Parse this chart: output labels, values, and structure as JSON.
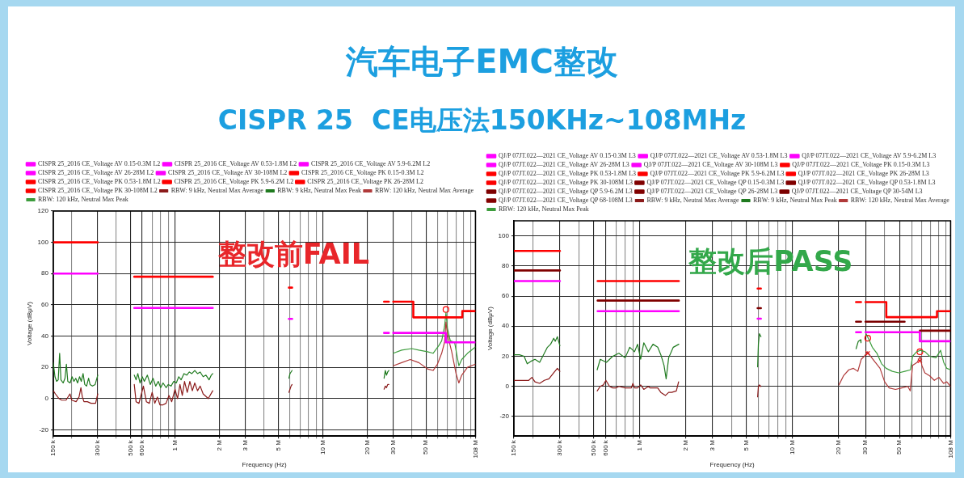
{
  "chart_data": [
    {
      "type": "line",
      "title": "汽车电子EMC整改",
      "subtitle": "CISPR 25  CE电压法150KHz~108MHz",
      "xlabel": "Frequency (Hz)",
      "ylabel": "Voltage (dBμV)",
      "annotations": [
        "整改前FAIL"
      ],
      "log": "x",
      "xlim": [
        150000,
        108000000
      ],
      "xticks": [
        {
          "value": 150000,
          "label": "150 k"
        },
        {
          "value": 200000,
          "label": null
        },
        {
          "value": 300000,
          "label": "300 k"
        },
        {
          "value": 400000,
          "label": null
        },
        {
          "value": 500000,
          "label": "500 k"
        },
        {
          "value": 600000,
          "label": "600 k"
        },
        {
          "value": 700000,
          "label": null
        },
        {
          "value": 800000,
          "label": null
        },
        {
          "value": 900000,
          "label": null
        },
        {
          "value": 1000000,
          "label": "1 M"
        },
        {
          "value": 2000000,
          "label": "2 M"
        },
        {
          "value": 3000000,
          "label": "3 M"
        },
        {
          "value": 4000000,
          "label": null
        },
        {
          "value": 5000000,
          "label": "5 M"
        },
        {
          "value": 6000000,
          "label": null
        },
        {
          "value": 7000000,
          "label": null
        },
        {
          "value": 8000000,
          "label": null
        },
        {
          "value": 9000000,
          "label": null
        },
        {
          "value": 10000000,
          "label": "10 M"
        },
        {
          "value": 20000000,
          "label": "20 M"
        },
        {
          "value": 30000000,
          "label": "30 M"
        },
        {
          "value": 40000000,
          "label": null
        },
        {
          "value": 50000000,
          "label": "50 M"
        },
        {
          "value": 60000000,
          "label": null
        },
        {
          "value": 70000000,
          "label": null
        },
        {
          "value": 80000000,
          "label": null
        },
        {
          "value": 90000000,
          "label": null
        },
        {
          "value": 100000000,
          "label": null
        },
        {
          "value": 108000000,
          "label": "108 M"
        }
      ],
      "ylim": [
        -24,
        120
      ],
      "yticks": [
        -20,
        0,
        20,
        40,
        60,
        80,
        100,
        120
      ],
      "grid": true,
      "legend": "top left",
      "series": [
        {
          "name": "CISPR 25_2016 CE_Voltage AV 0.15-0.3M L2",
          "color": "#ff00ff",
          "x": [
            150000,
            300000
          ],
          "values": [
            80,
            80
          ]
        },
        {
          "name": "CISPR 25_2016 CE_Voltage AV 0.53-1.8M L2",
          "color": "#ff00ff",
          "x": [
            530000,
            1800000
          ],
          "values": [
            58,
            58
          ]
        },
        {
          "name": "CISPR 25_2016 CE_Voltage AV 5.9-6.2M L2",
          "color": "#fd00fd",
          "x": [
            5900000,
            6200000
          ],
          "values": [
            51,
            51
          ]
        },
        {
          "name": "CISPR 25_2016 CE_Voltage AV 26-28M L2",
          "color": "#ff00ff",
          "x": [
            26000000,
            28000000
          ],
          "values": [
            42,
            42
          ]
        },
        {
          "name": "CISPR 25_2016 CE_Voltage AV 30-108M L2",
          "color": "#fb00fb",
          "x": [
            30000000,
            68000000,
            68000000,
            108000000
          ],
          "values": [
            42,
            42,
            36,
            36
          ]
        },
        {
          "name": "CISPR 25_2016 CE_Voltage PK 0.15-0.3M L2",
          "color": "#ff0000",
          "x": [
            150000,
            300000
          ],
          "values": [
            100,
            100
          ]
        },
        {
          "name": "CISPR 25_2016 CE_Voltage PK 0.53-1.8M L2",
          "color": "#ff0000",
          "x": [
            530000,
            1800000
          ],
          "values": [
            78,
            78
          ]
        },
        {
          "name": "CISPR 25_2016 CE_Voltage PK 5.9-6.2M L2",
          "color": "#fd0000",
          "x": [
            5900000,
            6200000
          ],
          "values": [
            71,
            71
          ]
        },
        {
          "name": "CISPR 25_2016 CE_Voltage PK 26-28M L2",
          "color": "#ff0000",
          "x": [
            26000000,
            28000000
          ],
          "values": [
            62,
            62
          ]
        },
        {
          "name": "CISPR 25_2016 CE_Voltage PK 30-108M L2",
          "color": "#fb0000",
          "x": [
            30000000,
            41000000,
            41000000,
            88000000,
            88000000,
            108000000
          ],
          "values": [
            62,
            62,
            52,
            52,
            56,
            56
          ]
        },
        {
          "name": "RBW: 9 kHz, Neutral Max Average",
          "color": "#8b1a1a",
          "x": [
            150000,
            155000,
            163900,
            171000,
            183000,
            194500,
            200000,
            214000,
            224000,
            230700,
            236000,
            242000,
            255000,
            270000,
            290000,
            300000,
            400000,
            530000,
            545000,
            570000,
            611000,
            640000,
            670000,
            700000,
            730000,
            760000,
            790000,
            830000,
            870000,
            910000,
            950000,
            1000000,
            1040000,
            1080000,
            1120000,
            1160000,
            1210000,
            1260000,
            1310000,
            1360000,
            1420000,
            1480000,
            1550000,
            1680000,
            1800000
          ],
          "values": [
            5,
            3,
            0,
            -1,
            -1,
            3,
            -1,
            -2,
            1,
            7,
            1,
            -2,
            -2,
            -3,
            -3,
            3,
            null,
            9,
            -2,
            -3,
            8,
            -2,
            -3,
            4,
            -3,
            1,
            -4,
            -4,
            -3,
            2,
            -2,
            6,
            0,
            9,
            2,
            11,
            4,
            11,
            5,
            10,
            5,
            8,
            3,
            0,
            5
          ]
        },
        {
          "name": "RBW: 9 kHz, Neutral Max Peak",
          "color": "#1f7a1f",
          "x": [
            150000,
            154000,
            158000,
            162000,
            165600,
            169000,
            175000,
            180000,
            184000,
            188000,
            195000,
            201000,
            207000,
            213000,
            219000,
            226000,
            232000,
            238600,
            245000,
            252000,
            260000,
            266000,
            276000,
            288000,
            300000,
            400000,
            530000,
            545000,
            560000,
            580000,
            600000,
            620000,
            650000,
            680000,
            710000,
            740000,
            770000,
            800000,
            830000,
            870000,
            900000,
            940000,
            980000,
            1020000,
            1060000,
            1100000,
            1150000,
            1200000,
            1250000,
            1300000,
            1360000,
            1420000,
            1480000,
            1550000,
            1620000,
            1700000,
            1760000,
            1800000
          ],
          "values": [
            23,
            14,
            11,
            12,
            29,
            12,
            10,
            13,
            22,
            11,
            10,
            14,
            11,
            13,
            10,
            14,
            11,
            16,
            9,
            8,
            13,
            9,
            8,
            9,
            15,
            null,
            15,
            12,
            16,
            10,
            14,
            11,
            15,
            9,
            13,
            8,
            11,
            7,
            10,
            7,
            9,
            8,
            11,
            10,
            14,
            12,
            16,
            15,
            17,
            16,
            18,
            16,
            17,
            14,
            15,
            12,
            15,
            16
          ]
        },
        {
          "name": "RBW: 120 kHz, Neutral Max Average",
          "color": "#b03a3a",
          "x": [
            30000000,
            34200000,
            39100000,
            44700000,
            51100000,
            55800000,
            59700000,
            63800000,
            66700000,
            68200000,
            69800000,
            74600000,
            79800000,
            83400000,
            87200000,
            95400000,
            108000000
          ],
          "values": [
            21,
            23,
            25,
            23,
            19,
            18,
            22,
            29,
            36,
            49,
            41,
            30,
            16,
            10,
            15,
            20,
            22
          ]
        },
        {
          "name": "RBW: 120 kHz, Neutral Max Peak",
          "color": "#3c9c3c",
          "x": [
            30000000,
            34200000,
            40000000,
            44700000,
            51100000,
            55800000,
            61100000,
            63800000,
            66700000,
            68200000,
            69800000,
            73000000,
            78000000,
            83400000,
            87200000,
            95400000,
            108000000
          ],
          "values": [
            29,
            31,
            32,
            31,
            30,
            29,
            34,
            37,
            46,
            55,
            45,
            37,
            36,
            21,
            25,
            29,
            33
          ]
        },
        {
          "color": "#8a1a1a",
          "x": [
            5900000,
            6000000,
            6100000,
            6200000
          ],
          "values": [
            4,
            6,
            8,
            9
          ]
        },
        {
          "color": "#891a1a",
          "x": [
            26000000,
            26500000,
            27000000,
            27500000,
            28000000
          ],
          "values": [
            6,
            8,
            7,
            9,
            9
          ]
        },
        {
          "color": "#1e7a1e",
          "x": [
            5900000,
            6000000,
            6100000,
            6200000
          ],
          "values": [
            13,
            16,
            17,
            18
          ]
        },
        {
          "color": "#1d7a1d",
          "x": [
            26000000,
            26500000,
            27000000,
            27500000,
            28000000
          ],
          "values": [
            13,
            18,
            15,
            17,
            18
          ]
        },
        {
          "type": "scatter",
          "marker": "circle",
          "color": "#ff0000",
          "x": [
            68200000
          ],
          "values": [
            57
          ]
        }
      ]
    },
    {
      "type": "line",
      "xlabel": "Frequency (Hz)",
      "ylabel": "Voltage (dBμV)",
      "annotations": [
        "整改后PASS"
      ],
      "log": "x",
      "xlim": [
        150000,
        108000000
      ],
      "xticks": [
        {
          "value": 150000,
          "label": "150 k"
        },
        {
          "value": 200000,
          "label": null
        },
        {
          "value": 300000,
          "label": "300 k"
        },
        {
          "value": 400000,
          "label": null
        },
        {
          "value": 500000,
          "label": "500 k"
        },
        {
          "value": 600000,
          "label": "600 k"
        },
        {
          "value": 700000,
          "label": null
        },
        {
          "value": 800000,
          "label": null
        },
        {
          "value": 900000,
          "label": null
        },
        {
          "value": 1000000,
          "label": "1 M"
        },
        {
          "value": 2000000,
          "label": "2 M"
        },
        {
          "value": 3000000,
          "label": "3 M"
        },
        {
          "value": 4000000,
          "label": null
        },
        {
          "value": 5000000,
          "label": "5 M"
        },
        {
          "value": 6000000,
          "label": null
        },
        {
          "value": 7000000,
          "label": null
        },
        {
          "value": 8000000,
          "label": null
        },
        {
          "value": 9000000,
          "label": null
        },
        {
          "value": 10000000,
          "label": "10 M"
        },
        {
          "value": 20000000,
          "label": "20 M"
        },
        {
          "value": 30000000,
          "label": "30 M"
        },
        {
          "value": 40000000,
          "label": null
        },
        {
          "value": 50000000,
          "label": "50 M"
        },
        {
          "value": 60000000,
          "label": null
        },
        {
          "value": 70000000,
          "label": null
        },
        {
          "value": 80000000,
          "label": null
        },
        {
          "value": 90000000,
          "label": null
        },
        {
          "value": 100000000,
          "label": null
        },
        {
          "value": 108000000,
          "label": "108 M"
        }
      ],
      "ylim": [
        -33,
        110
      ],
      "yticks": [
        -20,
        0,
        20,
        40,
        60,
        80,
        100
      ],
      "grid": true,
      "legend": "top left",
      "series": [
        {
          "name": "QJ/P 07JT.022—2021 CE_Voltage AV 0.15-0.3M L3",
          "color": "#ff00ff",
          "x": [
            150000,
            300000
          ],
          "values": [
            70,
            70
          ]
        },
        {
          "name": "QJ/P 07JT.022—2021 CE_Voltage AV 0.53-1.8M L3",
          "color": "#ff00ff",
          "x": [
            530000,
            1800000
          ],
          "values": [
            50,
            50
          ]
        },
        {
          "name": "QJ/P 07JT.022—2021 CE_Voltage AV 5.9-6.2M L3",
          "color": "#fd00fd",
          "x": [
            5900000,
            6200000
          ],
          "values": [
            45,
            45
          ]
        },
        {
          "name": "QJ/P 07JT.022—2021 CE_Voltage AV 26-28M L3",
          "color": "#ff00ff",
          "x": [
            26000000,
            28000000
          ],
          "values": [
            36,
            36
          ]
        },
        {
          "name": "QJ/P 07JT.022—2021 CE_Voltage AV 30-108M L3",
          "color": "#fb00fb",
          "x": [
            30000000,
            68000000,
            68000000,
            108000000
          ],
          "values": [
            36,
            36,
            30,
            30
          ]
        },
        {
          "name": "QJ/P 07JT.022—2021 CE_Voltage PK 0.15-0.3M L3",
          "color": "#ff0000",
          "x": [
            150000,
            300000
          ],
          "values": [
            90,
            90
          ]
        },
        {
          "name": "QJ/P 07JT.022—2021 CE_Voltage PK 0.53-1.8M L3",
          "color": "#ff0000",
          "x": [
            530000,
            1800000
          ],
          "values": [
            70,
            70
          ]
        },
        {
          "name": "QJ/P 07JT.022—2021 CE_Voltage PK 5.9-6.2M L3",
          "color": "#fd0000",
          "x": [
            5900000,
            6200000
          ],
          "values": [
            65,
            65
          ]
        },
        {
          "name": "QJ/P 07JT.022—2021 CE_Voltage PK 26-28M L3",
          "color": "#ff0000",
          "x": [
            26000000,
            28000000
          ],
          "values": [
            56,
            56
          ]
        },
        {
          "name": "QJ/P 07JT.022—2021 CE_Voltage PK 30-108M L3",
          "color": "#fb0000",
          "x": [
            30000000,
            41000000,
            41000000,
            88000000,
            88000000,
            108000000
          ],
          "values": [
            56,
            56,
            46,
            46,
            50,
            50
          ]
        },
        {
          "name": "QJ/P 07JT.022—2021 CE_Voltage QP 0.15-0.3M L3",
          "color": "#800000",
          "x": [
            150000,
            300000
          ],
          "values": [
            77,
            77
          ]
        },
        {
          "name": "QJ/P 07JT.022—2021 CE_Voltage QP 0.53-1.8M L3",
          "color": "#800000",
          "x": [
            530000,
            1800000
          ],
          "values": [
            57,
            57
          ]
        },
        {
          "name": "QJ/P 07JT.022—2021 CE_Voltage QP 5.9-6.2M L3",
          "color": "#7e0000",
          "x": [
            5900000,
            6200000
          ],
          "values": [
            52,
            52
          ]
        },
        {
          "name": "QJ/P 07JT.022—2021 CE_Voltage QP 26-28M L3",
          "color": "#800000",
          "x": [
            26000000,
            28000000
          ],
          "values": [
            43,
            43
          ]
        },
        {
          "name": "QJ/P 07JT.022—2021 CE_Voltage QP 30-54M L3",
          "color": "#7c0000",
          "x": [
            30000000,
            54000000
          ],
          "values": [
            43,
            43
          ]
        },
        {
          "name": "QJ/P 07JT.022—2021 CE_Voltage QP 68-108M L3",
          "color": "#840000",
          "x": [
            68000000,
            108000000
          ],
          "values": [
            37,
            37
          ]
        },
        {
          "name": "RBW: 9 kHz, Neutral Max Average",
          "color": "#8b1a1a",
          "x": [
            150000,
            163000,
            171000,
            187700,
            196700,
            206200,
            221200,
            237300,
            254500,
            273400,
            288900,
            300000,
            400000,
            526000,
            551000,
            578000,
            600000,
            634000,
            665000,
            696000,
            730000,
            802000,
            860000,
            881000,
            901000,
            923000,
            967000,
            1013000,
            1062000,
            1138000,
            1166000,
            1220000,
            1310000,
            1373000,
            1473000,
            1545000,
            1617000,
            1734000,
            1794000,
            3000000,
            5900000,
            5970000,
            6060000,
            6200000
          ],
          "values": [
            4,
            4,
            4,
            4,
            6,
            3,
            2,
            4,
            5,
            9,
            12,
            10,
            null,
            -3,
            0,
            1,
            4,
            0,
            -1,
            -1,
            0,
            -1,
            -1,
            -1,
            2,
            -1,
            -1,
            1,
            -2,
            0,
            -1,
            -1,
            -1,
            -4,
            -6,
            -4,
            -4,
            -3,
            3,
            null,
            -7,
            0,
            1,
            0
          ]
        },
        {
          "name": "RBW: 9 kHz, Neutral Max Peak",
          "color": "#1f7a1f",
          "x": [
            150000,
            163200,
            175000,
            183400,
            196700,
            206200,
            221200,
            237300,
            248700,
            260800,
            273400,
            279700,
            288900,
            300000,
            400000,
            526000,
            551000,
            605000,
            665000,
            730000,
            802000,
            860000,
            923000,
            967000,
            1013000,
            1062000,
            1138000,
            1220000,
            1310000,
            1373000,
            1440000,
            1487000,
            1545000,
            1656000,
            1800000,
            3000000,
            5900000,
            5970000,
            6060000,
            6200000,
            15000000,
            26000000,
            26900000,
            27900000,
            28000000
          ],
          "values": [
            21,
            21,
            20,
            15,
            17,
            18,
            16,
            22,
            26,
            28,
            32,
            30,
            33,
            27,
            null,
            11,
            18,
            16,
            20,
            22,
            19,
            26,
            23,
            28,
            18,
            29,
            23,
            28,
            26,
            21,
            14,
            5,
            19,
            26,
            28,
            null,
            13,
            28,
            35,
            33,
            null,
            25,
            30,
            31,
            29
          ]
        },
        {
          "name": "RBW: 120 kHz, Neutral Max Average",
          "color": "#b03a3a",
          "x": [
            20100000,
            21500000,
            23300000,
            25000000,
            26700000,
            28100000,
            29400000,
            30900000,
            32400000,
            34700000,
            37300000,
            40000000,
            42800000,
            47100000,
            51700000,
            56700000,
            58800000,
            60900000,
            65300000,
            68400000,
            70000000,
            73300000,
            78900000,
            84500000,
            90700000,
            97300000,
            102000000,
            108000000
          ],
          "values": [
            1,
            7,
            11,
            12,
            10,
            18,
            20,
            23,
            20,
            16,
            12,
            3,
            -1,
            -2,
            -1,
            0,
            -3,
            14,
            16,
            20,
            14,
            9,
            7,
            4,
            6,
            2,
            3,
            0
          ]
        },
        {
          "name": "RBW: 120 kHz, Neutral Max Peak",
          "color": "#3c9c3c",
          "x": [
            30200000,
            31600000,
            33200000,
            35600000,
            38200000,
            40900000,
            44900000,
            49400000,
            54200000,
            59000000,
            60900000,
            64800000,
            68500000,
            73500000,
            78800000,
            86600000,
            92900000,
            97300000,
            102000000,
            108000000
          ],
          "values": [
            35,
            31,
            26,
            22,
            15,
            12,
            10,
            9,
            10,
            11,
            20,
            23,
            24,
            23,
            20,
            19,
            24,
            16,
            12,
            11
          ]
        },
        {
          "type": "scatter",
          "marker": "circle",
          "color": "#ff0000",
          "x": [
            31000000,
            68000000
          ],
          "values": [
            32,
            23
          ]
        },
        {
          "type": "scatter",
          "marker": "cross",
          "color": "#ff0000",
          "x": [
            31000000,
            68000000
          ],
          "values": [
            22,
            17
          ]
        }
      ]
    }
  ]
}
